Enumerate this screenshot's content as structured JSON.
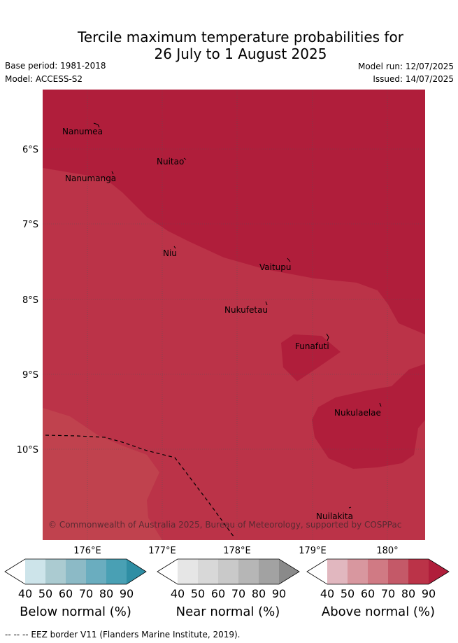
{
  "title_line1": "Tercile maximum temperature probabilities for",
  "title_line2": "26 July to 1 August 2025",
  "base_period": "Base period: 1981-2018",
  "model": "Model: ACCESS-S2",
  "model_run": "Model run: 12/07/2025",
  "issued": "Issued: 14/07/2025",
  "lat_ticks": [
    "6°S",
    "7°S",
    "8°S",
    "9°S",
    "10°S"
  ],
  "lon_ticks": [
    "176°E",
    "177°E",
    "178°E",
    "179°E",
    "180°"
  ],
  "places": [
    "Nanumea",
    "Nuitao",
    "Nanumanga",
    "Niu",
    "Vaitupu",
    "Nukufetau",
    "Funafuti",
    "Nukulaelae",
    "Nuilakita"
  ],
  "copyright": "© Commonwealth of Australia 2025, Bureau of Meteorology, supported by COSPPac",
  "colorbars": [
    {
      "label": "Below normal (%)",
      "ticks": [
        "40",
        "50",
        "60",
        "70",
        "80",
        "90"
      ],
      "colors": [
        "#ffffff",
        "#cde4ea",
        "#abcbd1",
        "#8cbac6",
        "#6aadbf",
        "#49a0b4",
        "#2f8ea4"
      ]
    },
    {
      "label": "Near normal (%)",
      "ticks": [
        "40",
        "50",
        "60",
        "70",
        "80",
        "90"
      ],
      "colors": [
        "#ffffff",
        "#e6e6e6",
        "#d8d8d8",
        "#c9c9c9",
        "#b6b6b6",
        "#a2a2a2",
        "#8a8a8a"
      ]
    },
    {
      "label": "Above normal (%)",
      "ticks": [
        "40",
        "50",
        "60",
        "70",
        "80",
        "90"
      ],
      "colors": [
        "#ffffff",
        "#e1b7bf",
        "#d8979f",
        "#d07a84",
        "#c45968",
        "#bb3348",
        "#b01e3b"
      ]
    }
  ],
  "map_colors": {
    "c80": "#b01e3b",
    "c70": "#bb3348",
    "c60": "#c0424e"
  },
  "footer": "-- -- -- EEZ border V11 (Flanders Marine Institute, 2019)."
}
